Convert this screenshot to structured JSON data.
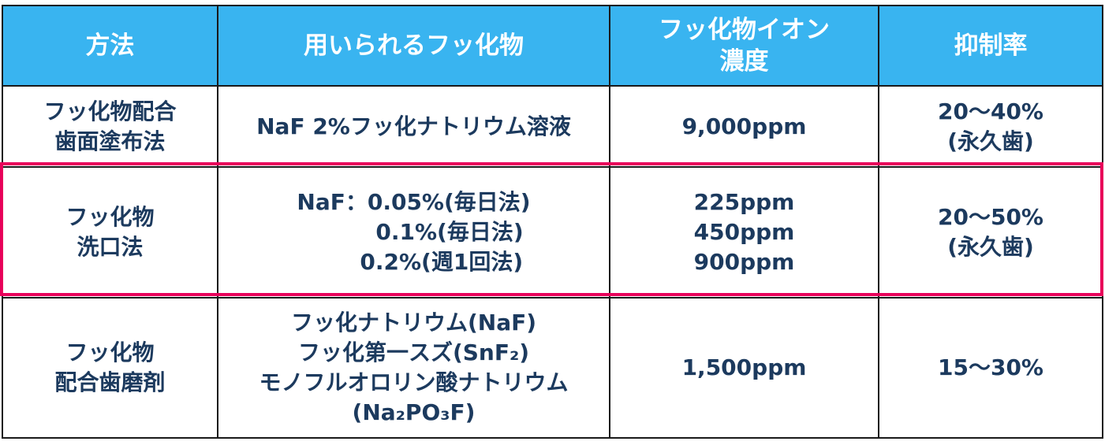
{
  "header": {
    "method": "方法",
    "compound": "用いられるフッ化物",
    "concentration_line1": "フッ化物イオン",
    "concentration_line2": "濃度",
    "rate": "抑制率"
  },
  "rows": [
    {
      "method": [
        "フッ化物配合",
        "歯面塗布法"
      ],
      "compound": [
        "NaF 2%フッ化ナトリウム溶液"
      ],
      "concentration": [
        "9,000ppm"
      ],
      "rate": [
        "20～40%",
        "(永久歯)"
      ]
    },
    {
      "method": [
        "フッ化物",
        "洗口法"
      ],
      "compound": [
        "NaF：0.05%(毎日法)",
        "0.1%(毎日法)",
        "0.2%(週1回法)"
      ],
      "concentration": [
        "225ppm",
        "450ppm",
        "900ppm"
      ],
      "rate": [
        "20～50%",
        "(永久歯)"
      ]
    },
    {
      "method": [
        "フッ化物",
        "配合歯磨剤"
      ],
      "compound": [
        "フッ化ナトリウム(NaF)",
        "フッ化第一スズ(SnF₂)",
        "モノフルオロリン酸ナトリウム",
        "(Na₂PO₃F)"
      ],
      "concentration": [
        "1,500ppm"
      ],
      "rate": [
        "15～30%"
      ]
    }
  ],
  "colors": {
    "header_bg": "#39b4f0",
    "header_text": "#ffffff",
    "body_text": "#1c3a5e",
    "highlight_border": "#e8005a",
    "grid": "#1a1a1a"
  }
}
